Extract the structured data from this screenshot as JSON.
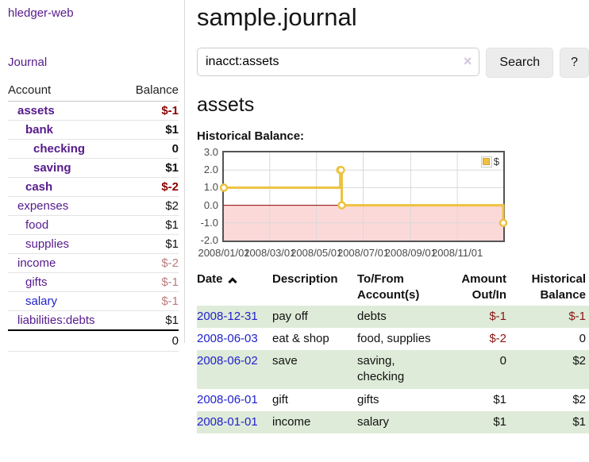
{
  "app": {
    "brand": "hledger-web",
    "nav_journal": "Journal"
  },
  "colors": {
    "link_purple": "#551a8b",
    "link_blue": "#2222cc",
    "negative_strong": "#8b0000",
    "negative_dark": "#8b1414",
    "negative_faded": "#b97c7c",
    "row_green": "#deebd8",
    "series_yellow": "#edc240",
    "negative_region_pink": "#fcd9d9",
    "zero_line_red": "#8b0000"
  },
  "sidebar": {
    "headers": {
      "account": "Account",
      "balance": "Balance"
    },
    "accounts": [
      {
        "name": "assets",
        "depth": 1,
        "strong": true,
        "color": "purple",
        "balance": "$-1",
        "balance_color": "darkred"
      },
      {
        "name": "bank",
        "depth": 2,
        "strong": true,
        "color": "purple",
        "balance": "$1",
        "balance_color": "normal"
      },
      {
        "name": "checking",
        "depth": 3,
        "strong": true,
        "color": "purple",
        "balance": "0",
        "balance_color": "normal"
      },
      {
        "name": "saving",
        "depth": 3,
        "strong": true,
        "color": "purple",
        "balance": "$1",
        "balance_color": "normal"
      },
      {
        "name": "cash",
        "depth": 2,
        "strong": true,
        "color": "purple",
        "balance": "$-2",
        "balance_color": "darkred"
      },
      {
        "name": "expenses",
        "depth": 1,
        "strong": false,
        "color": "purple",
        "balance": "$2",
        "balance_color": "normal"
      },
      {
        "name": "food",
        "depth": 2,
        "strong": false,
        "color": "purple",
        "balance": "$1",
        "balance_color": "normal"
      },
      {
        "name": "supplies",
        "depth": 2,
        "strong": false,
        "color": "purple",
        "balance": "$1",
        "balance_color": "normal"
      },
      {
        "name": "income",
        "depth": 1,
        "strong": false,
        "color": "purple",
        "balance": "$-2",
        "balance_color": "rose"
      },
      {
        "name": "gifts",
        "depth": 2,
        "strong": false,
        "color": "purple",
        "balance": "$-1",
        "balance_color": "rose"
      },
      {
        "name": "salary",
        "depth": 2,
        "strong": false,
        "color": "blue",
        "balance": "$-1",
        "balance_color": "rose"
      },
      {
        "name": "liabilities:debts",
        "depth": 1,
        "strong": false,
        "color": "purple",
        "balance": "$1",
        "balance_color": "normal"
      }
    ],
    "total": "0"
  },
  "main": {
    "title": "sample.journal",
    "search": {
      "value": "inacct:assets",
      "clear_icon": "×",
      "button_label": "Search",
      "help_label": "?"
    },
    "account_heading": "assets",
    "chart_label": "Historical Balance:"
  },
  "chart_data": {
    "type": "line",
    "step": true,
    "title": "Historical Balance",
    "legend": "$",
    "legend_position": "top-right",
    "series": [
      {
        "name": "$",
        "color": "#edc240",
        "points": [
          {
            "x": "2008-01-01",
            "y": 1
          },
          {
            "x": "2008-06-01",
            "y": 2
          },
          {
            "x": "2008-06-02",
            "y": 2
          },
          {
            "x": "2008-06-03",
            "y": 0
          },
          {
            "x": "2008-12-31",
            "y": -1
          }
        ]
      }
    ],
    "x_range": [
      "2008-01-01",
      "2008-12-31"
    ],
    "x_ticks": [
      "2008/01/01",
      "2008/03/01",
      "2008/05/01",
      "2008/07/01",
      "2008/09/01",
      "2008/11/01"
    ],
    "y_ticks": [
      "3.0",
      "2.0",
      "1.0",
      "0.0",
      "-1.0",
      "-2.0"
    ],
    "ylim": [
      -2,
      3
    ],
    "grid": true,
    "negative_region_color": "#fcd9d9",
    "zero_line_color": "#8b0000"
  },
  "register": {
    "headers": {
      "date": "Date",
      "description": "Description",
      "accounts": "To/From Account(s)",
      "amount": "Amount Out/In",
      "balance": "Historical Balance"
    },
    "sort": "ascending",
    "rows": [
      {
        "date": "2008-12-31",
        "description": "pay off",
        "accounts": "debts",
        "amount": "$-1",
        "amount_neg": true,
        "balance": "$-1",
        "balance_neg": true,
        "shaded": true
      },
      {
        "date": "2008-06-03",
        "description": "eat & shop",
        "accounts": "food, supplies",
        "amount": "$-2",
        "amount_neg": true,
        "balance": "0",
        "balance_neg": false,
        "shaded": false
      },
      {
        "date": "2008-06-02",
        "description": "save",
        "accounts": "saving, checking",
        "amount": "0",
        "amount_neg": false,
        "balance": "$2",
        "balance_neg": false,
        "shaded": true
      },
      {
        "date": "2008-06-01",
        "description": "gift",
        "accounts": "gifts",
        "amount": "$1",
        "amount_neg": false,
        "balance": "$2",
        "balance_neg": false,
        "shaded": false
      },
      {
        "date": "2008-01-01",
        "description": "income",
        "accounts": "salary",
        "amount": "$1",
        "amount_neg": false,
        "balance": "$1",
        "balance_neg": false,
        "shaded": true
      }
    ]
  }
}
